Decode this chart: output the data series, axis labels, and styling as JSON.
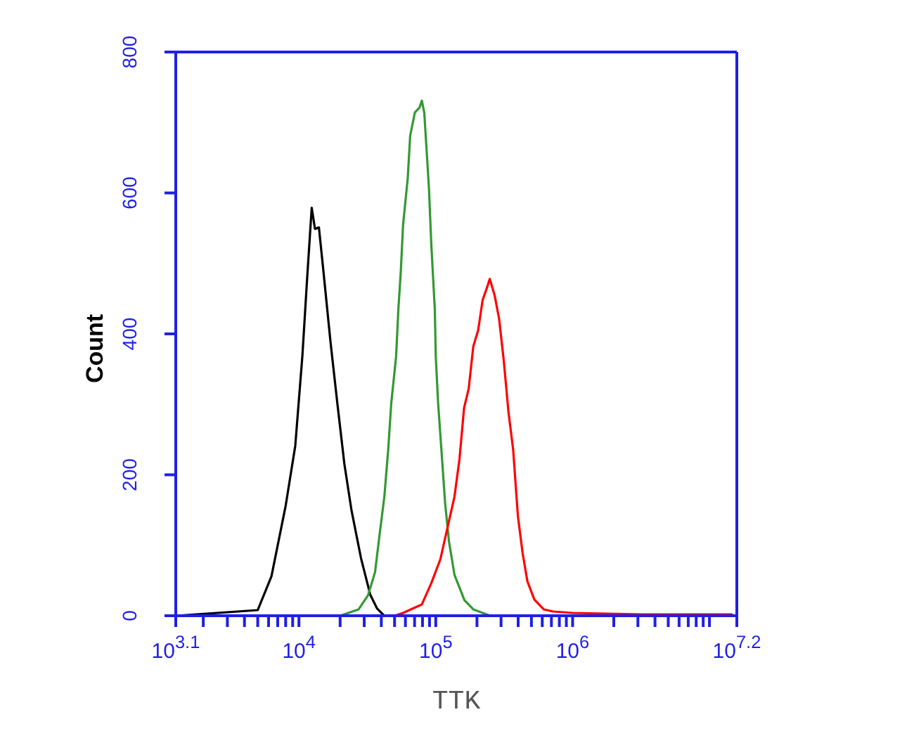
{
  "chart_data": {
    "type": "line",
    "xlabel": "TTK",
    "ylabel": "Count",
    "log": "x",
    "xlim": [
      1258.9,
      15848932
    ],
    "xticks": [
      {
        "value": 1258.9,
        "label": "10$^{3.1}$"
      },
      {
        "value": 2000,
        "label": null
      },
      {
        "value": 3000,
        "label": null
      },
      {
        "value": 4000,
        "label": null
      },
      {
        "value": 5000,
        "label": null
      },
      {
        "value": 6000,
        "label": null
      },
      {
        "value": 7000,
        "label": null
      },
      {
        "value": 8000,
        "label": null
      },
      {
        "value": 9000,
        "label": null
      },
      {
        "value": 10000,
        "label": "10$^{4}$"
      },
      {
        "value": 20000,
        "label": null
      },
      {
        "value": 30000,
        "label": null
      },
      {
        "value": 40000,
        "label": null
      },
      {
        "value": 50000,
        "label": null
      },
      {
        "value": 60000,
        "label": null
      },
      {
        "value": 70000,
        "label": null
      },
      {
        "value": 80000,
        "label": null
      },
      {
        "value": 90000,
        "label": null
      },
      {
        "value": 100000,
        "label": "10$^{5}$"
      },
      {
        "value": 200000,
        "label": null
      },
      {
        "value": 300000,
        "label": null
      },
      {
        "value": 400000,
        "label": null
      },
      {
        "value": 500000,
        "label": null
      },
      {
        "value": 600000,
        "label": null
      },
      {
        "value": 700000,
        "label": null
      },
      {
        "value": 800000,
        "label": null
      },
      {
        "value": 900000,
        "label": null
      },
      {
        "value": 1000000,
        "label": "10$^{6}$"
      },
      {
        "value": 2000000,
        "label": null
      },
      {
        "value": 3000000,
        "label": null
      },
      {
        "value": 4000000,
        "label": null
      },
      {
        "value": 5000000,
        "label": null
      },
      {
        "value": 6000000,
        "label": null
      },
      {
        "value": 7000000,
        "label": null
      },
      {
        "value": 8000000,
        "label": null
      },
      {
        "value": 9000000,
        "label": null
      },
      {
        "value": 10000000,
        "label": null
      },
      {
        "value": 15848932,
        "label": "10$^{7.2}$"
      }
    ],
    "ylim": [
      0,
      800
    ],
    "yticks": [
      0,
      200,
      400,
      600,
      800
    ],
    "marker": "none",
    "line_style": "solid",
    "series": [
      {
        "color": "#000000",
        "x": [
          1300,
          5000,
          6300,
          8000,
          9400,
          10600,
          11500,
          12400,
          13100,
          14000,
          15100,
          17000,
          19100,
          21500,
          24200,
          28400,
          33200,
          37300,
          42000,
          160000
        ],
        "values": [
          0,
          8,
          56,
          156,
          241,
          369,
          481,
          579,
          549,
          551,
          489,
          389,
          301,
          215,
          150,
          82,
          30,
          10,
          0,
          0
        ]
      },
      {
        "color": "#339933",
        "x": [
          20000,
          27300,
          32000,
          36000,
          38900,
          42100,
          44900,
          47300,
          51300,
          53300,
          55500,
          57700,
          62400,
          65000,
          70300,
          76000,
          79100,
          82400,
          89100,
          92700,
          98400,
          100000,
          104000,
          110000,
          117000,
          125000,
          137000,
          162000,
          188000,
          250000,
          525000
        ],
        "values": [
          0,
          9,
          29,
          62,
          116,
          169,
          235,
          302,
          368,
          435,
          488,
          555,
          621,
          681,
          714,
          721,
          731,
          714,
          608,
          528,
          435,
          368,
          302,
          235,
          160,
          105,
          58,
          22,
          9,
          0,
          0
        ]
      },
      {
        "color": "#ff0000",
        "x": [
          3900,
          50000,
          57800,
          67500,
          79100,
          92700,
          108000,
          117000,
          137000,
          149000,
          161000,
          174000,
          188000,
          204000,
          220000,
          239000,
          248000,
          269000,
          290000,
          314000,
          340000,
          368000,
          398000,
          431000,
          467000,
          525000,
          615000,
          720000,
          1000000,
          3160000,
          14500000,
          15000000
        ],
        "values": [
          0,
          0,
          4,
          10,
          16,
          46,
          80,
          110,
          169,
          222,
          295,
          322,
          382,
          405,
          448,
          468,
          478,
          455,
          422,
          362,
          289,
          235,
          142,
          89,
          49,
          23,
          9,
          6,
          4,
          2,
          2,
          0
        ]
      }
    ]
  }
}
